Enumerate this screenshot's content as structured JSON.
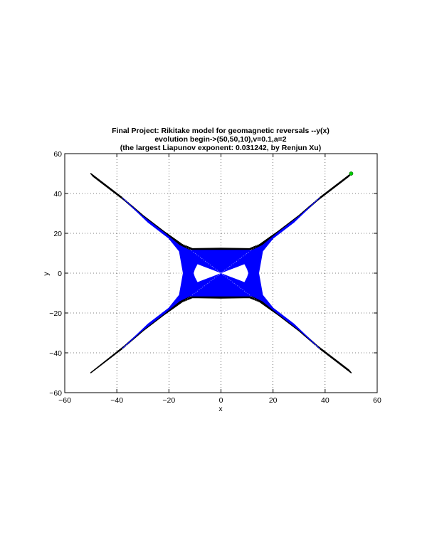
{
  "chart_data": {
    "type": "scatter",
    "title_lines": [
      "Final Project: Rikitake model for geomagnetic reversals --y(x)",
      "evolution begin->(50,50,10),v=0.1,a=2",
      "(the largest Liapunov exponent: 0.031242, by Renjun Xu)"
    ],
    "xlabel": "x",
    "ylabel": "y",
    "xlim": [
      -60,
      60
    ],
    "ylim": [
      -60,
      60
    ],
    "xticks": [
      -60,
      -40,
      -20,
      0,
      20,
      40,
      60
    ],
    "yticks": [
      -60,
      -40,
      -20,
      0,
      20,
      40,
      60
    ],
    "xtick_labels": [
      "−60",
      "−40",
      "−20",
      "0",
      "20",
      "40",
      "60"
    ],
    "ytick_labels": [
      "−60",
      "−40",
      "−20",
      "0",
      "20",
      "40",
      "60"
    ],
    "grid": true,
    "grid_style": "dotted",
    "series": [
      {
        "role": "trajectory-envelope",
        "color": "#000000",
        "points": [
          [
            50,
            50
          ],
          [
            38,
            38
          ],
          [
            30,
            29
          ],
          [
            22,
            21
          ],
          [
            15,
            14.5
          ],
          [
            11,
            12.3
          ],
          [
            0,
            12.5
          ],
          [
            -11,
            12.3
          ],
          [
            -15,
            14.5
          ],
          [
            -22,
            21
          ],
          [
            -30,
            29
          ],
          [
            -38,
            38
          ],
          [
            -50,
            50
          ],
          [
            -49,
            48.5
          ],
          [
            -37,
            36.5
          ],
          [
            -27,
            25
          ],
          [
            -19,
            17
          ],
          [
            -15,
            10
          ],
          [
            -14,
            0
          ],
          [
            -15,
            -10
          ],
          [
            -19,
            -17
          ],
          [
            -27,
            -25
          ],
          [
            -37,
            -36.5
          ],
          [
            -50,
            -50
          ],
          [
            -38,
            -38
          ],
          [
            -30,
            -29
          ],
          [
            -22,
            -21
          ],
          [
            -15,
            -14.5
          ],
          [
            -11,
            -12.3
          ],
          [
            0,
            -12.5
          ],
          [
            11,
            -12.3
          ],
          [
            15,
            -14.5
          ],
          [
            22,
            -21
          ],
          [
            30,
            -29
          ],
          [
            38,
            -38
          ],
          [
            50,
            -50
          ],
          [
            49,
            -48.5
          ],
          [
            37,
            -36.5
          ],
          [
            27,
            -25
          ],
          [
            19,
            -17
          ],
          [
            15,
            -10
          ],
          [
            14,
            0
          ],
          [
            15,
            10
          ],
          [
            19,
            17
          ],
          [
            27,
            25
          ],
          [
            37,
            36.5
          ],
          [
            49,
            48.5
          ]
        ]
      },
      {
        "role": "trajectory-fill",
        "color": "#0000ff",
        "points": [
          [
            38,
            38
          ],
          [
            30,
            28.5
          ],
          [
            22,
            20.5
          ],
          [
            16,
            14
          ],
          [
            12,
            11.5
          ],
          [
            0,
            11.5
          ],
          [
            -12,
            11.5
          ],
          [
            -16,
            14
          ],
          [
            -22,
            20.5
          ],
          [
            -30,
            28.5
          ],
          [
            -38,
            38
          ],
          [
            -28,
            25.5
          ],
          [
            -20,
            17.5
          ],
          [
            -16,
            11
          ],
          [
            -14.5,
            0
          ],
          [
            -16,
            -11
          ],
          [
            -20,
            -17.5
          ],
          [
            -28,
            -25.5
          ],
          [
            -38,
            -38
          ],
          [
            -30,
            -28.5
          ],
          [
            -22,
            -20.5
          ],
          [
            -16,
            -14
          ],
          [
            -12,
            -11.5
          ],
          [
            0,
            -11.5
          ],
          [
            12,
            -11.5
          ],
          [
            16,
            -14
          ],
          [
            22,
            -20.5
          ],
          [
            30,
            -28.5
          ],
          [
            38,
            -38
          ],
          [
            28,
            -25.5
          ],
          [
            20,
            -17.5
          ],
          [
            16,
            -11
          ],
          [
            14.5,
            0
          ],
          [
            16,
            11
          ],
          [
            20,
            17.5
          ],
          [
            28,
            25.5
          ]
        ]
      },
      {
        "role": "inner-hole",
        "color": "#ffffff",
        "points": [
          [
            -9,
            4.5
          ],
          [
            -7,
            3.5
          ],
          [
            -3,
            1.5
          ],
          [
            0,
            0
          ],
          [
            3,
            1.5
          ],
          [
            7,
            3.5
          ],
          [
            9,
            4.5
          ],
          [
            10,
            2
          ],
          [
            10.5,
            0
          ],
          [
            10,
            -2
          ],
          [
            9,
            -4.5
          ],
          [
            7,
            -3.5
          ],
          [
            3,
            -1.5
          ],
          [
            0,
            0
          ],
          [
            -3,
            -1.5
          ],
          [
            -7,
            -3.5
          ],
          [
            -9,
            -4.5
          ],
          [
            -10,
            -2
          ],
          [
            -10.5,
            0
          ],
          [
            -10,
            2
          ]
        ]
      },
      {
        "role": "start-point",
        "color": "#00cc00",
        "points": [
          [
            50,
            50
          ]
        ]
      }
    ]
  }
}
